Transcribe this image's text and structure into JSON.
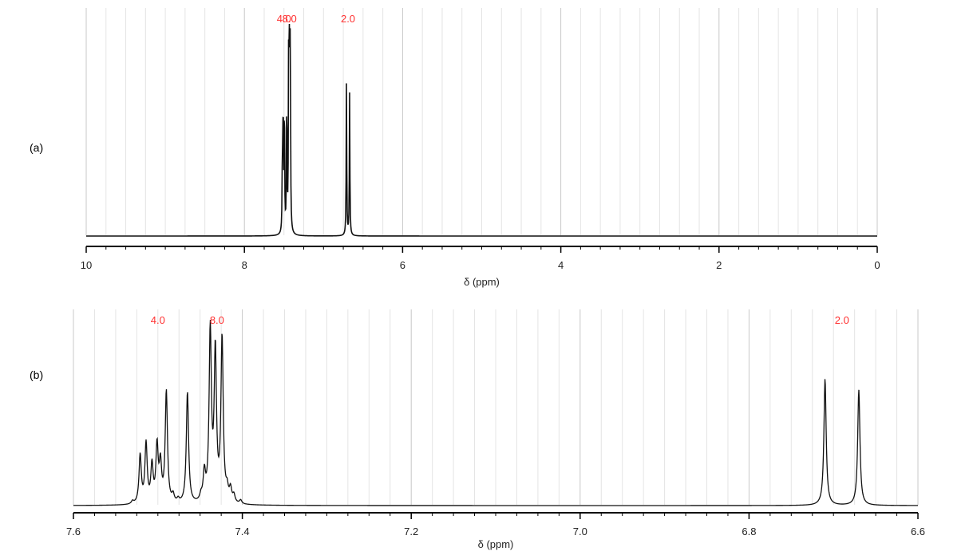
{
  "panels": [
    {
      "label": "(a)"
    },
    {
      "label": "(b)"
    }
  ],
  "chart_data": [
    {
      "type": "line",
      "panel": "(a)",
      "xlabel": "δ (ppm)",
      "ylabel": "",
      "xlim": [
        10,
        0
      ],
      "x_reversed": true,
      "tick_values": [
        10,
        8,
        6,
        4,
        2,
        0
      ],
      "tick_labels": [
        "10",
        "8",
        "6",
        "4",
        "2",
        "0"
      ],
      "grid": true,
      "integrals": [
        {
          "x": 7.5,
          "text": "4.0"
        },
        {
          "x": 7.43,
          "text": "8.0"
        },
        {
          "x": 6.69,
          "text": "2.0"
        }
      ],
      "peaks": [
        {
          "ppm": 7.52,
          "height": 0.36
        },
        {
          "ppm": 7.51,
          "height": 0.62
        },
        {
          "ppm": 7.495,
          "height": 0.63
        },
        {
          "ppm": 7.465,
          "height": 0.66
        },
        {
          "ppm": 7.44,
          "height": 0.97
        },
        {
          "ppm": 7.43,
          "height": 0.92
        },
        {
          "ppm": 7.42,
          "height": 0.9
        },
        {
          "ppm": 6.71,
          "height": 0.72
        },
        {
          "ppm": 6.67,
          "height": 0.67
        }
      ]
    },
    {
      "type": "line",
      "panel": "(b)",
      "xlabel": "δ (ppm)",
      "ylabel": "",
      "xlim": [
        7.6,
        6.6
      ],
      "x_reversed": true,
      "tick_values": [
        7.6,
        7.4,
        7.2,
        7.0,
        6.8,
        6.6
      ],
      "tick_labels": [
        "7.6",
        "7.4",
        "7.2",
        "7.0",
        "6.8",
        "6.6"
      ],
      "grid": true,
      "integrals": [
        {
          "x": 7.5,
          "text": "4.0"
        },
        {
          "x": 7.43,
          "text": "8.0"
        },
        {
          "x": 6.69,
          "text": "2.0"
        }
      ],
      "peaks": [
        {
          "ppm": 7.53,
          "height": 0.015
        },
        {
          "ppm": 7.521,
          "height": 0.26
        },
        {
          "ppm": 7.514,
          "height": 0.32
        },
        {
          "ppm": 7.507,
          "height": 0.2
        },
        {
          "ppm": 7.501,
          "height": 0.3
        },
        {
          "ppm": 7.497,
          "height": 0.2
        },
        {
          "ppm": 7.49,
          "height": 0.6
        },
        {
          "ppm": 7.482,
          "height": 0.04
        },
        {
          "ppm": 7.476,
          "height": 0.02
        },
        {
          "ppm": 7.465,
          "height": 0.6
        },
        {
          "ppm": 7.449,
          "height": 0.03
        },
        {
          "ppm": 7.445,
          "height": 0.15
        },
        {
          "ppm": 7.438,
          "height": 0.92
        },
        {
          "ppm": 7.432,
          "height": 0.8
        },
        {
          "ppm": 7.424,
          "height": 0.88
        },
        {
          "ppm": 7.418,
          "height": 0.06
        },
        {
          "ppm": 7.414,
          "height": 0.07
        },
        {
          "ppm": 7.41,
          "height": 0.04
        },
        {
          "ppm": 7.402,
          "height": 0.02
        },
        {
          "ppm": 6.71,
          "height": 0.68
        },
        {
          "ppm": 6.67,
          "height": 0.62
        }
      ]
    }
  ]
}
